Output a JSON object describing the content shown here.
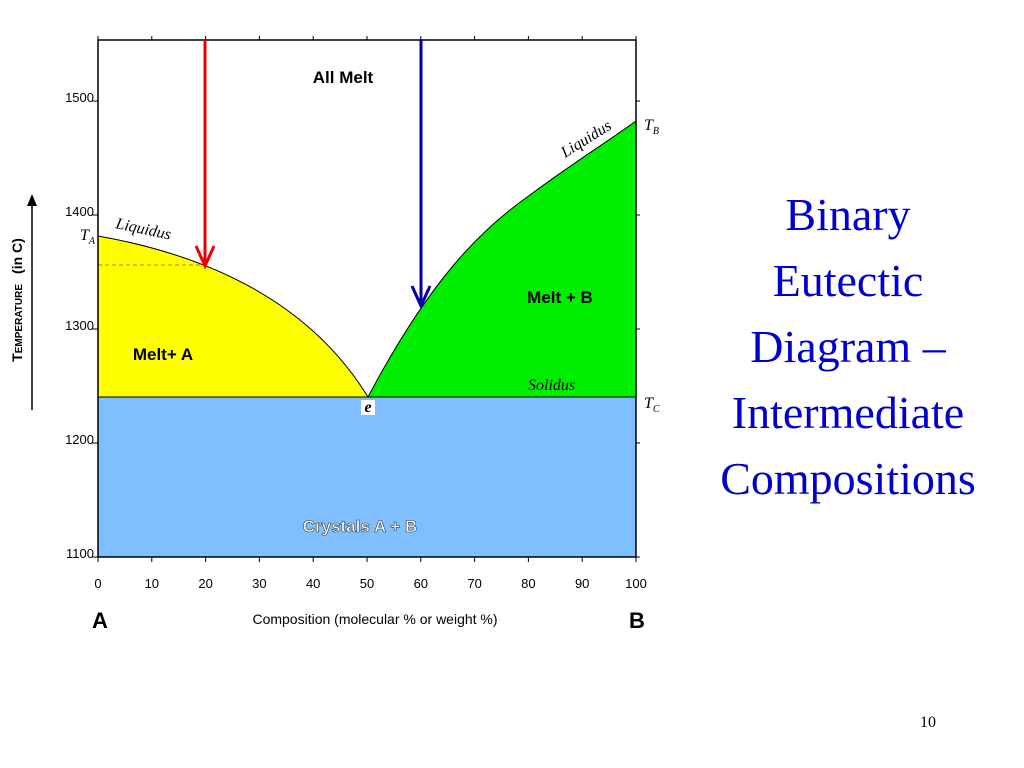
{
  "slide": {
    "title_lines": [
      "Binary",
      "Eutectic",
      "Diagram –",
      "Intermediate",
      "Compositions"
    ],
    "page_number": "10"
  },
  "figure": {
    "y_axis": {
      "label_main": "Temperature",
      "label_unit": "(in C)",
      "ticks": [
        1100,
        1200,
        1300,
        1400,
        1500
      ]
    },
    "x_axis": {
      "label": "Composition  (molecular %  or  weight %)",
      "ticks": [
        0,
        10,
        20,
        30,
        40,
        50,
        60,
        70,
        80,
        90,
        100
      ],
      "left_end": "A",
      "right_end": "B"
    },
    "regions": {
      "all_melt": "All Melt",
      "melt_a": "Melt+ A",
      "melt_b": "Melt + B",
      "crystals": "Crystals A + B"
    },
    "curves": {
      "liquidus_left": "Liquidus",
      "liquidus_right": "Liquidus",
      "solidus": "Solidus"
    },
    "points": {
      "eutectic": "e",
      "t_a": {
        "symbol": "T",
        "subscript": "A"
      },
      "t_b": {
        "symbol": "T",
        "subscript": "B"
      },
      "t_c": {
        "symbol": "T",
        "subscript": "C"
      }
    }
  }
}
